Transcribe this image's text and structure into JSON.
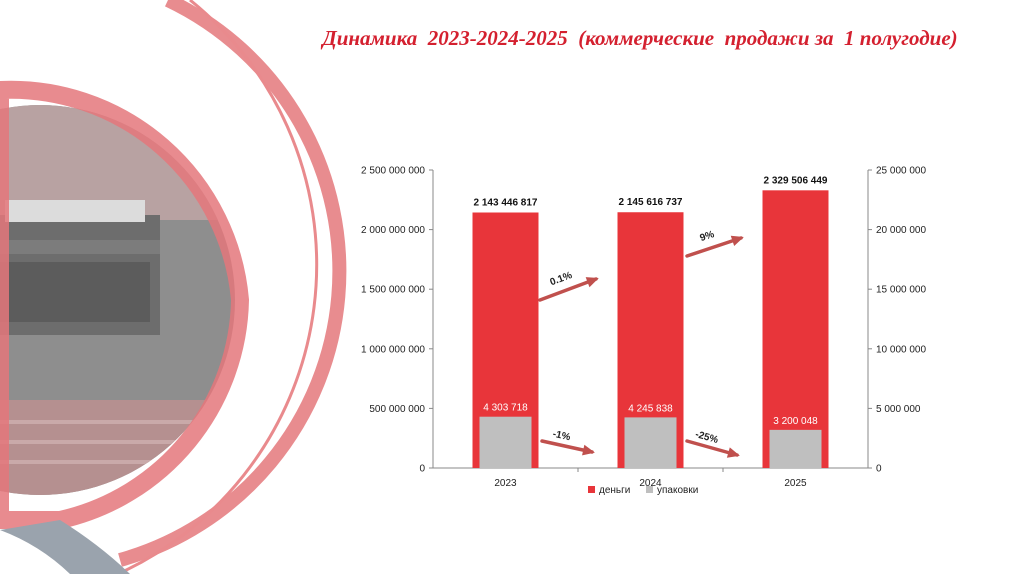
{
  "title": "Динамика  2023-2024-2025  (коммерческие  продажи за  1 полугодие)",
  "colors": {
    "accent": "#d4202f",
    "money": "#e8353a",
    "packs": "#bfbfbf",
    "arrow": "#c0504d"
  },
  "chart_data": {
    "type": "bar",
    "categories": [
      "2023",
      "2024",
      "2025"
    ],
    "series": [
      {
        "name": "деньги",
        "axis": "left",
        "values": [
          2143446817,
          2145616737,
          2329506449
        ],
        "labels": [
          "2 143 446 817",
          "2 145 616 737",
          "2 329 506 449"
        ]
      },
      {
        "name": "упаковки",
        "axis": "right",
        "values": [
          4303718,
          4245838,
          3200048
        ],
        "labels": [
          "4 303 718",
          "4 245 838",
          "3 200 048"
        ]
      }
    ],
    "ylim_left": [
      0,
      2500000000
    ],
    "ylim_right": [
      0,
      25000000
    ],
    "left_ticks": [
      "0",
      "500 000 000",
      "1 000 000 000",
      "1 500 000 000",
      "2 000 000 000",
      "2 500 000 000"
    ],
    "right_ticks": [
      "0",
      "5 000 000",
      "10 000 000",
      "15 000 000",
      "20 000 000",
      "25 000 000"
    ],
    "changes": [
      {
        "series": "деньги",
        "between": [
          "2023",
          "2024"
        ],
        "label": "0.1%"
      },
      {
        "series": "деньги",
        "between": [
          "2024",
          "2025"
        ],
        "label": "9%"
      },
      {
        "series": "упаковки",
        "between": [
          "2023",
          "2024"
        ],
        "label": "-1%"
      },
      {
        "series": "упаковки",
        "between": [
          "2024",
          "2025"
        ],
        "label": "-25%"
      }
    ],
    "legend_position": "bottom",
    "grid": false
  }
}
